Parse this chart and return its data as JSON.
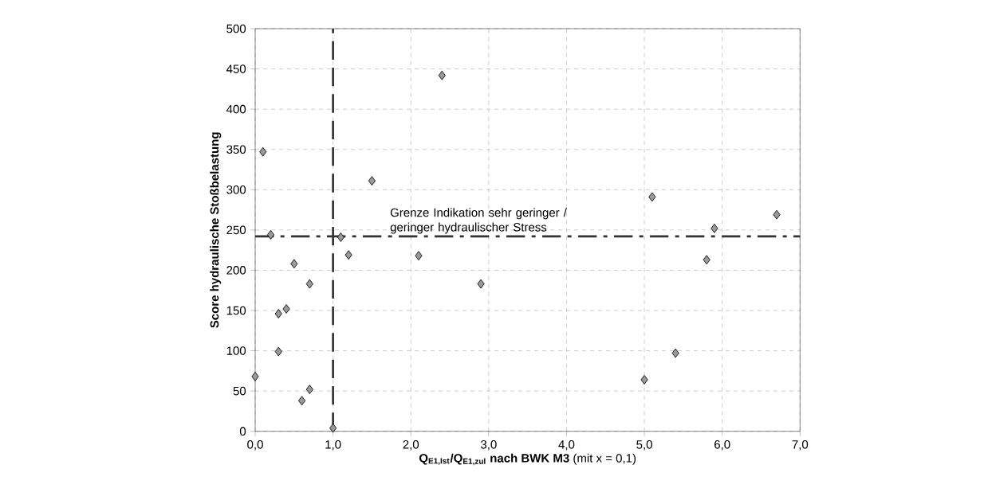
{
  "chart_data": {
    "type": "scatter",
    "xlabel": "**Q$_{E1,Ist}$/Q$_{E1,zul}$ nach BWK M3** (mit x = 0,1)",
    "ylabel": "Score hydraulische Stoßbelastung",
    "series": [
      {
        "color": "#999999",
        "marker": "diamond",
        "x": [
          0.0,
          0.1,
          0.2,
          0.3,
          0.4,
          0.3,
          0.5,
          0.7,
          0.7,
          0.6,
          1.0,
          1.1,
          1.2,
          1.5,
          2.1,
          2.4,
          2.9,
          5.1,
          6.7,
          5.9,
          5.8,
          5.4,
          5.0
        ],
        "values": [
          68,
          347,
          244,
          146,
          152,
          99,
          208,
          183,
          52,
          38,
          4,
          241,
          219,
          311,
          218,
          442,
          183,
          291,
          269,
          252,
          213,
          97,
          64
        ]
      }
    ],
    "xlim": [
      0,
      7
    ],
    "ylim": [
      0,
      500
    ],
    "xticks": [
      {
        "value": 0,
        "label": "0,0"
      },
      {
        "value": 1,
        "label": "1,0"
      },
      {
        "value": 2,
        "label": "2,0"
      },
      {
        "value": 3,
        "label": "3,0"
      },
      {
        "value": 4,
        "label": "4,0"
      },
      {
        "value": 5,
        "label": "5,0"
      },
      {
        "value": 6,
        "label": "6,0"
      },
      {
        "value": 7,
        "label": "7,0"
      }
    ],
    "yticks": [
      0,
      50,
      100,
      150,
      200,
      250,
      300,
      350,
      400,
      450,
      500
    ],
    "grid": true,
    "ref_lines": [
      {
        "axis": "x",
        "value": 1.0,
        "color": "#333333",
        "line_style": "dashed"
      },
      {
        "axis": "y",
        "value": 242,
        "color": "#333333",
        "line_style": "dashdot",
        "label": "Grenze Indikation sehr geringer / geringer hydraulischer Stress"
      }
    ]
  }
}
